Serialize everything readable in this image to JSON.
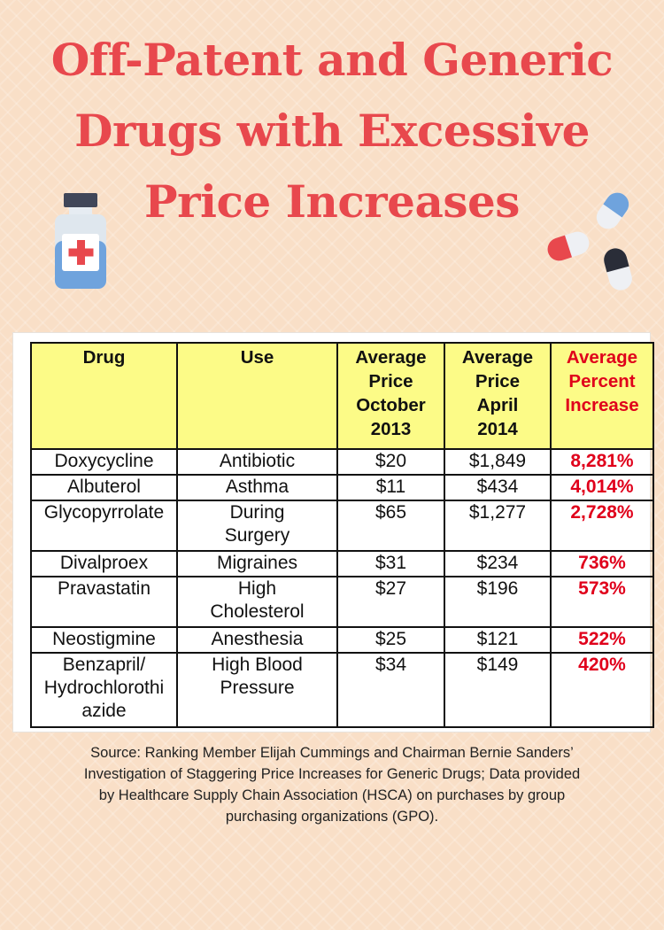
{
  "title_lines": [
    "Off-Patent and Generic",
    "Drugs with Excessive",
    "Price Increases"
  ],
  "colors": {
    "title": "#e8484d",
    "header_bg": "#fcfb87",
    "percent_text": "#e0001b",
    "background": "#f9dfc7"
  },
  "icons": {
    "bottle": "medicine-bottle-icon",
    "pills": "capsule-pills-icon"
  },
  "table": {
    "headers": {
      "drug": "Drug",
      "use": "Use",
      "oct": [
        "Average",
        "Price",
        "October",
        "2013"
      ],
      "apr": [
        "Average",
        "Price",
        "April",
        "2014"
      ],
      "pct": [
        "Average",
        "Percent",
        "Increase"
      ]
    },
    "rows": [
      {
        "drug": [
          "Doxycycline"
        ],
        "use": [
          "Antibiotic"
        ],
        "oct": "$20",
        "apr": "$1,849",
        "pct": "8,281%"
      },
      {
        "drug": [
          "Albuterol"
        ],
        "use": [
          "Asthma"
        ],
        "oct": "$11",
        "apr": "$434",
        "pct": "4,014%"
      },
      {
        "drug": [
          "Glycopyrrolate"
        ],
        "use": [
          "During",
          "Surgery"
        ],
        "oct": "$65",
        "apr": "$1,277",
        "pct": "2,728%"
      },
      {
        "drug": [
          "Divalproex"
        ],
        "use": [
          "Migraines"
        ],
        "oct": "$31",
        "apr": "$234",
        "pct": "736%"
      },
      {
        "drug": [
          "Pravastatin"
        ],
        "use": [
          "High",
          "Cholesterol"
        ],
        "oct": "$27",
        "apr": "$196",
        "pct": "573%"
      },
      {
        "drug": [
          "Neostigmine"
        ],
        "use": [
          "Anesthesia"
        ],
        "oct": "$25",
        "apr": "$121",
        "pct": "522%"
      },
      {
        "drug": [
          "Benzapril/",
          "Hydrochlorothi",
          "azide"
        ],
        "use": [
          "High Blood",
          "Pressure"
        ],
        "oct": "$34",
        "apr": "$149",
        "pct": "420%"
      }
    ]
  },
  "source_lines": [
    "Source: Ranking Member Elijah Cummings and Chairman Bernie Sanders’",
    "Investigation of Staggering Price Increases for Generic Drugs; Data provided",
    "by Healthcare Supply Chain Association (HSCA) on purchases by group",
    "purchasing organizations (GPO)."
  ]
}
